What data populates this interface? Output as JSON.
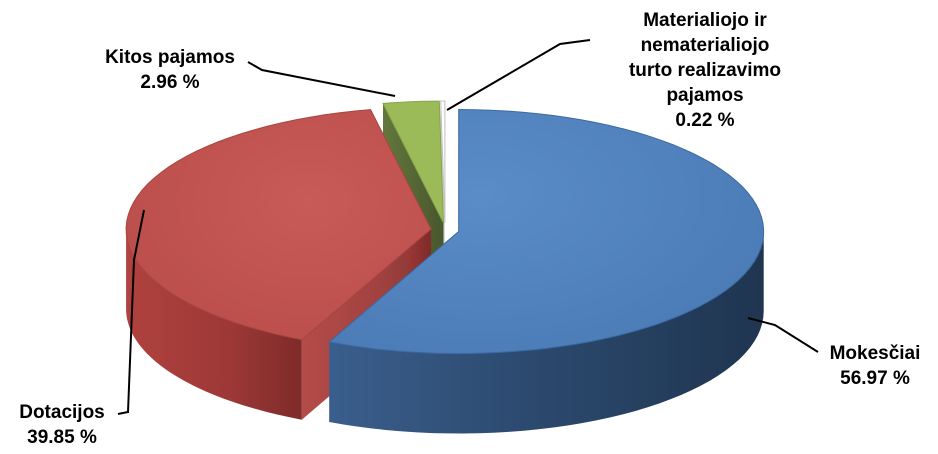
{
  "chart_data": {
    "type": "pie",
    "style": "3d-exploded",
    "categories": [
      "Mokesčiai",
      "Dotacijos",
      "Kitos pajamos",
      "Materialiojo ir nematerialiojo turto realizavimo pajamos"
    ],
    "values": [
      56.97,
      39.85,
      2.96,
      0.22
    ],
    "value_labels": [
      "56.97 %",
      "39.85 %",
      "2.96 %",
      "0.22 %"
    ],
    "colors": [
      "#4f81bd",
      "#c0504d",
      "#9bbb59",
      "#ffffff"
    ],
    "legend": "none"
  },
  "labels": {
    "mokesciai": {
      "name": "Mokesčiai",
      "value": "56.97 %"
    },
    "dotacijos": {
      "name": "Dotacijos",
      "value": "39.85 %"
    },
    "kitos": {
      "name": "Kitos pajamos",
      "value": "2.96 %"
    },
    "materialiojo": {
      "line1": "Materialiojo ir",
      "line2": "nematerialiojo",
      "line3": "turto realizavimo",
      "line4": "pajamos",
      "value": "0.22 %"
    }
  }
}
